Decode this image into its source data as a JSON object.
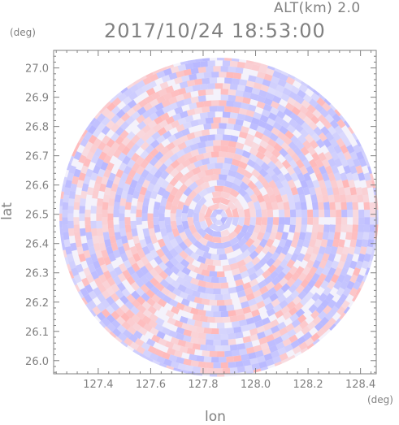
{
  "header": {
    "altitude_label": "ALT(km) 2.0",
    "timestamp": "2017/10/24 18:53:00"
  },
  "axes": {
    "lat_unit": "(deg)",
    "lon_unit": "(deg)",
    "ylabel": "lat",
    "xlabel": "lon",
    "lat_ticks": [
      "27.0",
      "26.9",
      "26.8",
      "26.7",
      "26.6",
      "26.5",
      "26.4",
      "26.3",
      "26.2",
      "26.1",
      "26.0"
    ],
    "lon_ticks": [
      "127.4",
      "127.6",
      "127.8",
      "128.0",
      "128.2",
      "128.4"
    ]
  },
  "map": {
    "center_lon": 127.86,
    "center_lat": 26.49,
    "lon_range": [
      127.23,
      128.46
    ],
    "lat_range": [
      25.955,
      27.06
    ],
    "radius_lat_deg": 0.545,
    "palette": {
      "positive": "#ffb4b4",
      "negative": "#b4b4ff",
      "neutral": "#ffffff",
      "axis": "#808080"
    }
  }
}
